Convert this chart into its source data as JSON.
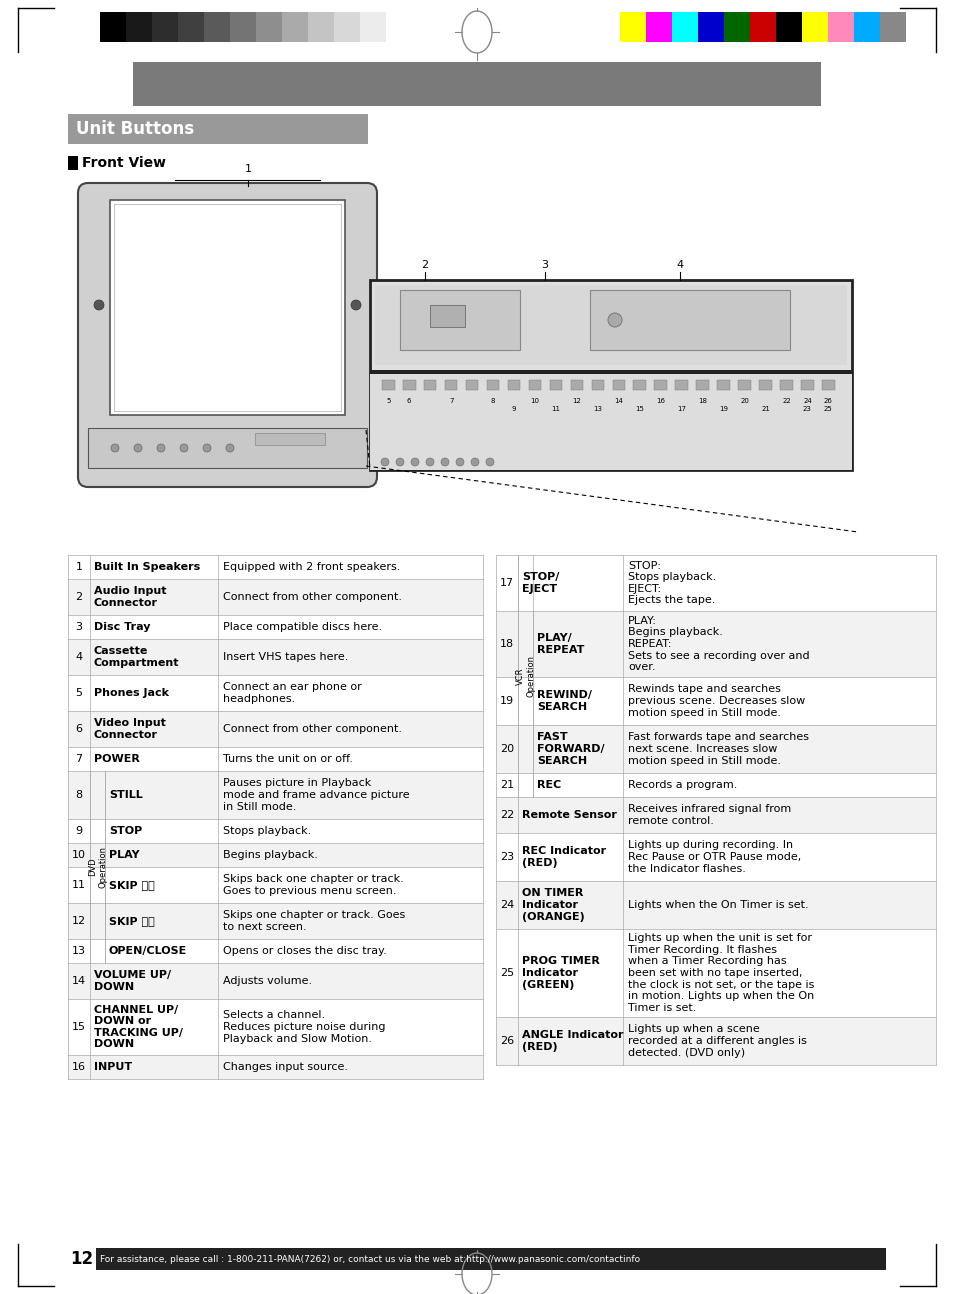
{
  "page_num": "12",
  "title": "Unit Buttons",
  "subtitle": "Front View",
  "footer": "For assistance, please call : 1-800-211-PANA(7262) or, contact us via the web at:http://www.panasonic.com/contactinfo",
  "left_table": [
    {
      "num": "1",
      "bold_label": "Built In Speakers",
      "desc": "Equipped with 2 front speakers.",
      "group": null
    },
    {
      "num": "2",
      "bold_label": "Audio Input\nConnector",
      "desc": "Connect from other component.",
      "group": null
    },
    {
      "num": "3",
      "bold_label": "Disc Tray",
      "desc": "Place compatible discs here.",
      "group": null
    },
    {
      "num": "4",
      "bold_label": "Cassette\nCompartment",
      "desc": "Insert VHS tapes here.",
      "group": null
    },
    {
      "num": "5",
      "bold_label": "Phones Jack",
      "desc": "Connect an ear phone or\nheadphones.",
      "group": null
    },
    {
      "num": "6",
      "bold_label": "Video Input\nConnector",
      "desc": "Connect from other component.",
      "group": null
    },
    {
      "num": "7",
      "bold_label": "POWER",
      "desc": "Turns the unit on or off.",
      "group": null
    },
    {
      "num": "8",
      "bold_label": "STILL",
      "desc": "Pauses picture in Playback\nmode and frame advance picture\nin Still mode.",
      "group": "DVD Operation"
    },
    {
      "num": "9",
      "bold_label": "STOP",
      "desc": "Stops playback.",
      "group": "DVD Operation"
    },
    {
      "num": "10",
      "bold_label": "PLAY",
      "desc": "Begins playback.",
      "group": "DVD Operation"
    },
    {
      "num": "11",
      "bold_label": "SKIP ⏮⏮",
      "desc": "Skips back one chapter or track.\nGoes to previous menu screen.",
      "group": "DVD Operation"
    },
    {
      "num": "12",
      "bold_label": "SKIP ⏭⏭",
      "desc": "Skips one chapter or track. Goes\nto next screen.",
      "group": "DVD Operation"
    },
    {
      "num": "13",
      "bold_label": "OPEN/CLOSE",
      "desc": "Opens or closes the disc tray.",
      "group": "DVD Operation"
    },
    {
      "num": "14",
      "bold_label": "VOLUME UP/\nDOWN",
      "desc": "Adjusts volume.",
      "group": null
    },
    {
      "num": "15",
      "bold_label": "CHANNEL UP/\nDOWN or\nTRACKING UP/\nDOWN",
      "desc": "Selects a channel.\nReduces picture noise during\nPlayback and Slow Motion.",
      "group": null
    },
    {
      "num": "16",
      "bold_label": "INPUT",
      "desc": "Changes input source.",
      "group": null
    }
  ],
  "right_table": [
    {
      "num": "17",
      "bold_label": "STOP/\nEJECT",
      "desc": "STOP:\nStops playback.\nEJECT:\nEjects the tape.",
      "group": null
    },
    {
      "num": "18",
      "bold_label": "PLAY/\nREPEAT",
      "desc": "PLAY:\nBegins playback.\nREPEAT:\nSets to see a recording over and\nover.",
      "group": "VCR Operation"
    },
    {
      "num": "19",
      "bold_label": "REWIND/\nSEARCH",
      "desc": "Rewinds tape and searches\nprevious scene. Decreases slow\nmotion speed in Still mode.",
      "group": "VCR Operation"
    },
    {
      "num": "20",
      "bold_label": "FAST\nFORWARD/\nSEARCH",
      "desc": "Fast forwards tape and searches\nnext scene. Increases slow\nmotion speed in Still mode.",
      "group": "VCR Operation"
    },
    {
      "num": "21",
      "bold_label": "REC",
      "desc": "Records a program.",
      "group": "VCR Operation"
    },
    {
      "num": "22",
      "bold_label": "Remote Sensor",
      "desc": "Receives infrared signal from\nremote control.",
      "group": null
    },
    {
      "num": "23",
      "bold_label": "REC Indicator\n(RED)",
      "desc": "Lights up during recording. In\nRec Pause or OTR Pause mode,\nthe Indicator flashes.",
      "group": null
    },
    {
      "num": "24",
      "bold_label": "ON TIMER\nIndicator\n(ORANGE)",
      "desc": "Lights when the On Timer is set.",
      "group": null
    },
    {
      "num": "25",
      "bold_label": "PROG TIMER\nIndicator\n(GREEN)",
      "desc": "Lights up when the unit is set for\nTimer Recording. It flashes\nwhen a Timer Recording has\nbeen set with no tape inserted,\nthe clock is not set, or the tape is\nin motion. Lights up when the On\nTimer is set.",
      "group": null
    },
    {
      "num": "26",
      "bold_label": "ANGLE Indicator\n(RED)",
      "desc": "Lights up when a scene\nrecorded at a different angles is\ndetected. (DVD only)",
      "group": null
    }
  ],
  "color_bar_dark": [
    "#000000",
    "#191919",
    "#2d2d2d",
    "#404040",
    "#5a5a5a",
    "#747474",
    "#8e8e8e",
    "#aaaaaa",
    "#c4c4c4",
    "#d8d8d8",
    "#ececec",
    "#ffffff"
  ],
  "color_bar_bright": [
    "#ffff00",
    "#ff00ff",
    "#00ffff",
    "#0000cc",
    "#006600",
    "#cc0000",
    "#000000",
    "#ffff00",
    "#ff88bb",
    "#00aaff",
    "#888888"
  ]
}
